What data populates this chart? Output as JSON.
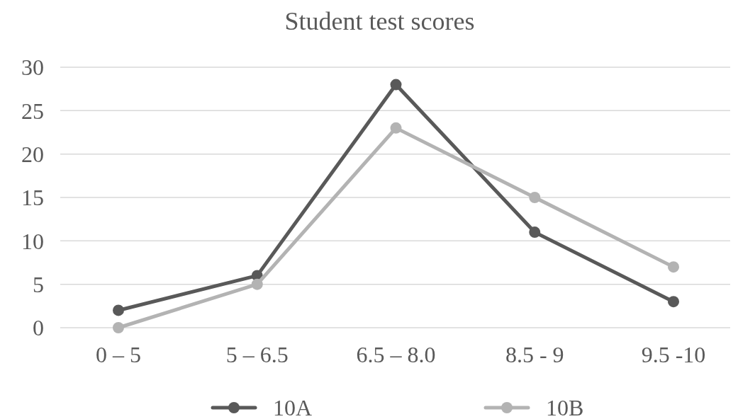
{
  "chart_data": {
    "type": "line",
    "title": "Student test scores",
    "categories": [
      "0 – 5",
      "5 – 6.5",
      "6.5 – 8.0",
      "8.5 - 9",
      "9.5 -10"
    ],
    "series": [
      {
        "name": "10A",
        "color": "#595959",
        "values": [
          2,
          6,
          28,
          11,
          3
        ]
      },
      {
        "name": "10B",
        "color": "#b3b3b3",
        "values": [
          0,
          5,
          23,
          15,
          7
        ]
      }
    ],
    "ylim": [
      0,
      30
    ],
    "yticks": [
      0,
      5,
      10,
      15,
      20,
      25,
      30
    ],
    "grid": "y",
    "legend": "bottom",
    "marker": "circle",
    "line_style": "solid"
  }
}
